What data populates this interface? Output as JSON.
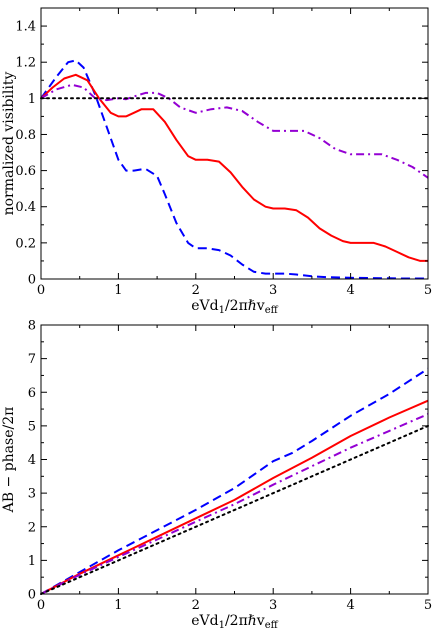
{
  "chart_data": [
    {
      "type": "line",
      "xlabel": "eVd₁/2πħvₑₒₒ",
      "xlabel_main": "eVd",
      "xlabel_sub1": "1",
      "xlabel_mid": "/2πℏv",
      "xlabel_sub2": "eff",
      "ylabel": "normalized visibility",
      "xlim": [
        0,
        5
      ],
      "ylim": [
        0,
        1.5
      ],
      "xticks": [
        "0",
        "1",
        "2",
        "3",
        "4",
        "5"
      ],
      "yticks": [
        "0",
        "0.2",
        "0.4",
        "0.6",
        "0.8",
        "1",
        "1.2",
        "1.4"
      ],
      "series": [
        {
          "color": "#0000ff",
          "dash": "dashed",
          "x": [
            0,
            0.2,
            0.35,
            0.45,
            0.55,
            0.7,
            0.85,
            1.0,
            1.1,
            1.2,
            1.35,
            1.5,
            1.6,
            1.75,
            1.9,
            2.0,
            2.15,
            2.3,
            2.45,
            2.6,
            2.75,
            2.9,
            3.0,
            3.15,
            3.3,
            3.5,
            3.7,
            3.9,
            4.1,
            4.3,
            4.5,
            4.7,
            5.0
          ],
          "y": [
            1.0,
            1.12,
            1.2,
            1.21,
            1.17,
            1.02,
            0.84,
            0.66,
            0.6,
            0.6,
            0.61,
            0.57,
            0.47,
            0.31,
            0.2,
            0.17,
            0.17,
            0.16,
            0.13,
            0.08,
            0.04,
            0.03,
            0.03,
            0.03,
            0.025,
            0.015,
            0.01,
            0.008,
            0.006,
            0.005,
            0.004,
            0.003,
            0.003
          ]
        },
        {
          "color": "#ff0000",
          "dash": "solid",
          "x": [
            0,
            0.15,
            0.3,
            0.45,
            0.6,
            0.75,
            0.9,
            1.0,
            1.1,
            1.2,
            1.3,
            1.45,
            1.6,
            1.75,
            1.9,
            2.0,
            2.15,
            2.3,
            2.45,
            2.6,
            2.75,
            2.9,
            3.0,
            3.15,
            3.3,
            3.45,
            3.6,
            3.75,
            3.9,
            4.0,
            4.15,
            4.3,
            4.45,
            4.6,
            4.75,
            4.9,
            5.0
          ],
          "y": [
            1.0,
            1.06,
            1.11,
            1.13,
            1.1,
            1.0,
            0.92,
            0.9,
            0.9,
            0.92,
            0.94,
            0.94,
            0.87,
            0.77,
            0.68,
            0.66,
            0.66,
            0.65,
            0.59,
            0.51,
            0.44,
            0.4,
            0.39,
            0.39,
            0.38,
            0.34,
            0.28,
            0.24,
            0.21,
            0.2,
            0.2,
            0.2,
            0.18,
            0.15,
            0.12,
            0.1,
            0.1
          ]
        },
        {
          "color": "#9400d3",
          "dash": "dashdot",
          "x": [
            0,
            0.2,
            0.4,
            0.55,
            0.7,
            0.85,
            1.0,
            1.1,
            1.2,
            1.35,
            1.5,
            1.65,
            1.8,
            2.0,
            2.2,
            2.4,
            2.6,
            2.8,
            3.0,
            3.2,
            3.4,
            3.6,
            3.8,
            4.0,
            4.2,
            4.4,
            4.6,
            4.8,
            5.0
          ],
          "y": [
            1.0,
            1.05,
            1.075,
            1.06,
            1.0,
            0.99,
            1.0,
            0.995,
            1.01,
            1.03,
            1.03,
            1.0,
            0.95,
            0.92,
            0.94,
            0.95,
            0.93,
            0.87,
            0.82,
            0.82,
            0.82,
            0.78,
            0.72,
            0.69,
            0.69,
            0.69,
            0.66,
            0.62,
            0.56
          ]
        },
        {
          "color": "#000000",
          "dash": "dotted",
          "x": [
            0,
            5
          ],
          "y": [
            1,
            1
          ]
        }
      ]
    },
    {
      "type": "line",
      "xlabel": "eVd₁/2πħvₑₒₒ",
      "xlabel_main": "eVd",
      "xlabel_sub1": "1",
      "xlabel_mid": "/2πℏv",
      "xlabel_sub2": "eff",
      "ylabel": "AB − phase/2π",
      "xlim": [
        0,
        5
      ],
      "ylim": [
        0,
        8
      ],
      "xticks": [
        "0",
        "1",
        "2",
        "3",
        "4",
        "5"
      ],
      "yticks": [
        "0",
        "1",
        "2",
        "3",
        "4",
        "5",
        "6",
        "7",
        "8"
      ],
      "series": [
        {
          "color": "#0000ff",
          "dash": "dashed",
          "x": [
            0,
            0.5,
            1.0,
            1.25,
            1.5,
            2.0,
            2.5,
            3.0,
            3.25,
            3.5,
            4.0,
            4.5,
            5.0
          ],
          "y": [
            0,
            0.65,
            1.3,
            1.6,
            1.9,
            2.5,
            3.15,
            3.95,
            4.2,
            4.55,
            5.3,
            5.95,
            6.7
          ]
        },
        {
          "color": "#ff0000",
          "dash": "solid",
          "x": [
            0,
            0.5,
            1.0,
            1.5,
            2.0,
            2.5,
            3.0,
            3.5,
            4.0,
            4.5,
            5.0
          ],
          "y": [
            0,
            0.6,
            1.15,
            1.7,
            2.25,
            2.8,
            3.45,
            4.05,
            4.7,
            5.25,
            5.75
          ]
        },
        {
          "color": "#9400d3",
          "dash": "dashdot",
          "x": [
            0,
            0.5,
            1.0,
            1.5,
            2.0,
            2.5,
            3.0,
            3.5,
            4.0,
            4.5,
            5.0
          ],
          "y": [
            0,
            0.57,
            1.1,
            1.62,
            2.15,
            2.67,
            3.25,
            3.8,
            4.35,
            4.85,
            5.35
          ]
        },
        {
          "color": "#000000",
          "dash": "dotted",
          "x": [
            0,
            5
          ],
          "y": [
            0,
            5
          ]
        }
      ]
    }
  ]
}
